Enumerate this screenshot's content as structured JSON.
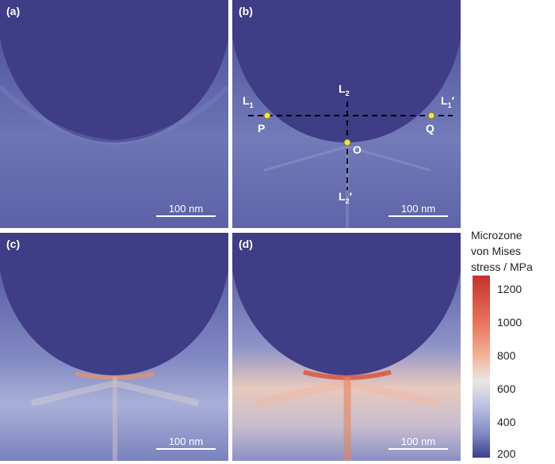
{
  "panels": [
    {
      "label": "(a)",
      "scale_label": "100 nm"
    },
    {
      "label": "(b)",
      "scale_label": "100 nm"
    },
    {
      "label": "(c)",
      "scale_label": "100 nm"
    },
    {
      "label": "(d)",
      "scale_label": "100 nm"
    }
  ],
  "annotations": {
    "L1": "L",
    "L1_sub": "1",
    "L1p": "L",
    "L1p_sub": "1",
    "L1p_prime": "′",
    "L2": "L",
    "L2_sub": "2",
    "L2p": "L",
    "L2p_sub": "2",
    "L2p_prime": "′",
    "P": "P",
    "Q": "Q",
    "O": "O"
  },
  "colorbar": {
    "title_lines": [
      "Microzone",
      "von Mises",
      "stress / MPa"
    ],
    "ticks": [
      "1200",
      "1000",
      "800",
      "600",
      "400",
      "200"
    ],
    "min": 200,
    "max": 1250,
    "colors": {
      "low": "#3d3d8d",
      "mid": "#ece6e4",
      "high": "#c4322c"
    }
  }
}
